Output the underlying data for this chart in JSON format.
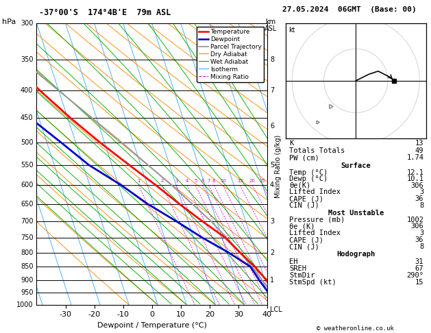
{
  "title_left": "-37°00'S  174°4B'E  79m ASL",
  "title_right": "27.05.2024  06GMT  (Base: 00)",
  "xlabel": "Dewpoint / Temperature (°C)",
  "pres_min": 300,
  "pres_max": 1000,
  "temp_min": -40,
  "temp_max": 40,
  "temp_ticks": [
    -30,
    -20,
    -10,
    0,
    10,
    20,
    30,
    40
  ],
  "pres_levels": [
    300,
    350,
    400,
    450,
    500,
    550,
    600,
    650,
    700,
    750,
    800,
    850,
    900,
    950,
    1000
  ],
  "km_ticks": [
    [
      350,
      "8"
    ],
    [
      400,
      "7"
    ],
    [
      465,
      "6"
    ],
    [
      550,
      "5"
    ],
    [
      600,
      "4"
    ],
    [
      700,
      "3"
    ],
    [
      800,
      "2"
    ],
    [
      900,
      "1"
    ]
  ],
  "skew_factor": 32,
  "temp_profile_t": [
    12.1,
    12.0,
    10.5,
    8.0,
    4.5,
    1.0,
    -5.0,
    -11.0,
    -17.0,
    -24.0,
    -31.5,
    -39.0,
    -46.5,
    -54.0,
    -62.0
  ],
  "temp_profile_p": [
    1000,
    950,
    900,
    850,
    800,
    750,
    700,
    650,
    600,
    550,
    500,
    450,
    400,
    350,
    300
  ],
  "dewp_profile_t": [
    10.1,
    9.8,
    8.0,
    6.5,
    0.5,
    -7.0,
    -14.0,
    -22.0,
    -29.0,
    -38.0,
    -45.0,
    -53.0,
    -59.0,
    -62.0,
    -65.0
  ],
  "dewp_profile_p": [
    1000,
    950,
    900,
    850,
    800,
    750,
    700,
    650,
    600,
    550,
    500,
    450,
    400,
    350,
    300
  ],
  "parcel_t": [
    12.1,
    10.8,
    9.0,
    7.0,
    4.5,
    1.5,
    -2.0,
    -6.5,
    -11.5,
    -17.5,
    -24.0,
    -31.5,
    -40.0,
    -49.5,
    -59.0
  ],
  "parcel_p": [
    1000,
    950,
    900,
    850,
    800,
    750,
    700,
    650,
    600,
    550,
    500,
    450,
    400,
    350,
    300
  ],
  "color_temp": "#ff0000",
  "color_dewp": "#0000cc",
  "color_parcel": "#999999",
  "color_dry_adiabat": "#ff8800",
  "color_wet_adiabat": "#00aa00",
  "color_isotherm": "#44aaff",
  "color_mixing_ratio": "#dd00dd",
  "mr_values": [
    1,
    2,
    3,
    4,
    5,
    6,
    7,
    8,
    10,
    15,
    20,
    25
  ],
  "indices": [
    [
      "K",
      "13"
    ],
    [
      "Totals Totals",
      "49"
    ],
    [
      "PW (cm)",
      "1.74"
    ]
  ],
  "surface_title": "Surface",
  "surface": [
    [
      "Temp (°C)",
      "12.1"
    ],
    [
      "Dewp (°C)",
      "10.1"
    ],
    [
      "θe(K)",
      "306"
    ],
    [
      "Lifted Index",
      "3"
    ],
    [
      "CAPE (J)",
      "36"
    ],
    [
      "CIN (J)",
      "8"
    ]
  ],
  "unstable_title": "Most Unstable",
  "unstable": [
    [
      "Pressure (mb)",
      "1002"
    ],
    [
      "θe (K)",
      "306"
    ],
    [
      "Lifted Index",
      "3"
    ],
    [
      "CAPE (J)",
      "36"
    ],
    [
      "CIN (J)",
      "8"
    ]
  ],
  "hodo_title": "Hodograph",
  "hodograph": [
    [
      "EH",
      "31"
    ],
    [
      "SREH",
      "67"
    ],
    [
      "StmDir",
      "290°"
    ],
    [
      "StmSpd (kt)",
      "15"
    ]
  ],
  "copyright": "© weatheronline.co.uk"
}
